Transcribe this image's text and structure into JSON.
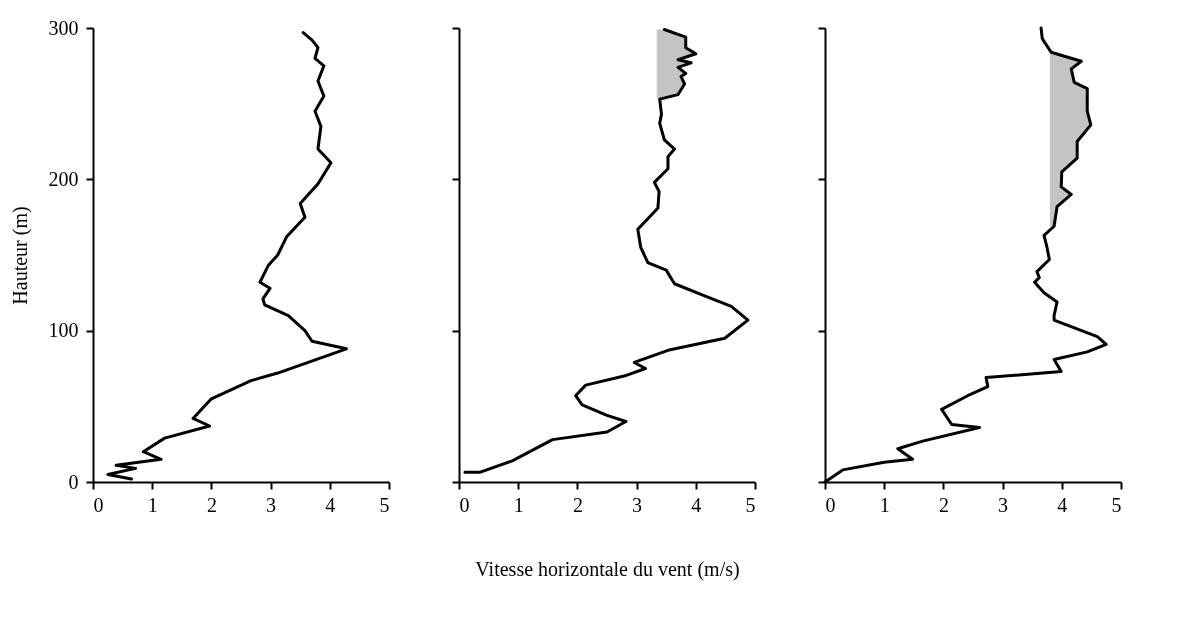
{
  "chart_data": [
    {
      "type": "line",
      "orientation": "horizontal",
      "ylabel": "Hauteur (m)",
      "xlim": [
        0,
        5
      ],
      "xticks": [
        0,
        1,
        2,
        3,
        4,
        5
      ],
      "ylim": [
        0,
        300
      ],
      "yticks": [
        0,
        100,
        200,
        300
      ],
      "grid": false,
      "marker": "none",
      "line_style": "solid",
      "series": [
        {
          "color": "#000000",
          "values": [
            0.65,
            0.25,
            0.72,
            0.39,
            1.15,
            0.85,
            1.21,
            1.97,
            1.69,
            2.0,
            2.67,
            3.12,
            4.28,
            3.7,
            3.58,
            3.3,
            2.9,
            2.87,
            2.99,
            2.82,
            2.96,
            3.12,
            3.27,
            3.58,
            3.5,
            3.8,
            4.02,
            3.8,
            3.85,
            3.75,
            3.9,
            3.8,
            3.9,
            3.75,
            3.8,
            3.7,
            3.55
          ],
          "x": [
            2,
            5,
            9,
            11,
            15,
            20,
            29,
            37,
            42,
            55,
            67,
            72,
            88,
            93,
            100,
            110,
            117,
            121,
            128,
            132,
            143,
            150,
            162,
            175,
            184,
            197,
            211,
            220,
            235,
            245,
            255,
            265,
            275,
            280,
            287,
            292,
            297
          ]
        }
      ]
    },
    {
      "type": "line",
      "orientation": "horizontal",
      "xlabel": "Vitesse horizontale du vent (m/s)",
      "xlim": [
        0,
        5
      ],
      "xticks": [
        0,
        1,
        2,
        3,
        4,
        5
      ],
      "ylim": [
        0,
        300
      ],
      "yticks": [
        0,
        100,
        200,
        300
      ],
      "tick_labels": "x",
      "grid": false,
      "marker": "none",
      "line_style": "solid",
      "series": [
        {
          "color": "#000000",
          "values": [
            0.1,
            0.36,
            0.9,
            1.58,
            2.5,
            2.82,
            2.5,
            2.08,
            1.97,
            2.14,
            2.79,
            3.15,
            2.96,
            3.53,
            4.49,
            4.88,
            4.6,
            4.15,
            3.64,
            3.5,
            3.19,
            3.07,
            3.02,
            3.19,
            3.36,
            3.38,
            3.3,
            3.53,
            3.53,
            3.64,
            3.47,
            3.39,
            3.42,
            3.39,
            3.7,
            3.81,
            3.75,
            3.83,
            3.7,
            3.92,
            3.7,
            4.0,
            3.83,
            3.83,
            3.47
          ],
          "x": [
            6.5,
            6.5,
            14,
            28,
            33,
            40,
            44,
            51,
            57,
            64,
            70,
            75,
            79,
            87,
            95,
            107,
            116,
            123,
            131,
            140,
            145,
            155,
            167,
            174,
            181,
            192,
            198,
            207,
            215,
            220,
            226,
            237,
            243,
            253,
            256,
            263,
            268,
            270,
            274,
            277,
            279,
            283,
            287,
            294,
            299
          ],
          "lower": [
            null,
            null,
            null,
            null,
            null,
            null,
            null,
            null,
            null,
            null,
            null,
            null,
            null,
            null,
            null,
            null,
            null,
            null,
            null,
            null,
            null,
            null,
            null,
            null,
            null,
            null,
            null,
            null,
            null,
            null,
            null,
            null,
            null,
            3.34,
            3.34,
            3.34,
            3.34,
            3.34,
            3.34,
            3.34,
            3.34,
            3.34,
            3.34,
            3.34,
            3.34
          ],
          "upper": [
            null,
            null,
            null,
            null,
            null,
            null,
            null,
            null,
            null,
            null,
            null,
            null,
            null,
            null,
            null,
            null,
            null,
            null,
            null,
            null,
            null,
            null,
            null,
            null,
            null,
            null,
            null,
            null,
            null,
            null,
            null,
            null,
            null,
            3.39,
            3.7,
            3.81,
            3.75,
            3.83,
            3.7,
            3.92,
            3.7,
            4.0,
            3.83,
            3.83,
            3.47
          ]
        }
      ]
    },
    {
      "type": "line",
      "orientation": "horizontal",
      "xlim": [
        0,
        5
      ],
      "xticks": [
        0,
        1,
        2,
        3,
        4,
        5
      ],
      "ylim": [
        0,
        300
      ],
      "yticks": [
        0,
        100,
        200,
        300
      ],
      "tick_labels": "x",
      "grid": false,
      "marker": "none",
      "line_style": "solid",
      "series": [
        {
          "color": "#000000",
          "values": [
            0,
            0.3,
            1.0,
            1.48,
            1.23,
            1.65,
            2.61,
            2.14,
            1.97,
            2.41,
            2.75,
            2.72,
            3.99,
            3.87,
            4.43,
            4.75,
            4.6,
            3.87,
            3.87,
            3.92,
            3.7,
            3.54,
            3.62,
            3.58,
            3.79,
            3.75,
            3.7,
            3.87,
            3.92,
            4.16,
            3.99,
            4.0,
            4.26,
            4.26,
            4.49,
            4.43,
            4.43,
            4.21,
            4.16,
            4.33,
            3.82,
            3.67,
            3.65
          ],
          "x": [
            0,
            8,
            13,
            15,
            22,
            27,
            36,
            38,
            48,
            57,
            63,
            69,
            73,
            81,
            86,
            91,
            96,
            107,
            110,
            119,
            125,
            132,
            135,
            139,
            147,
            155,
            163,
            169,
            182,
            190,
            195,
            205,
            214,
            225,
            236,
            245,
            260,
            264,
            273,
            278,
            284,
            293,
            300
          ],
          "lower": [
            null,
            null,
            null,
            null,
            null,
            null,
            null,
            null,
            null,
            null,
            null,
            null,
            null,
            null,
            null,
            null,
            null,
            null,
            null,
            null,
            null,
            null,
            null,
            null,
            null,
            null,
            null,
            3.8,
            3.8,
            3.8,
            3.8,
            3.8,
            3.8,
            3.8,
            3.8,
            3.8,
            3.8,
            3.8,
            3.8,
            3.8,
            3.8,
            null,
            null
          ],
          "upper": [
            null,
            null,
            null,
            null,
            null,
            null,
            null,
            null,
            null,
            null,
            null,
            null,
            null,
            null,
            null,
            null,
            null,
            null,
            null,
            null,
            null,
            null,
            null,
            null,
            null,
            null,
            null,
            3.87,
            3.92,
            4.16,
            3.99,
            4.0,
            4.26,
            4.26,
            4.49,
            4.43,
            4.43,
            4.21,
            4.16,
            4.33,
            3.82,
            null,
            null
          ]
        }
      ]
    }
  ]
}
